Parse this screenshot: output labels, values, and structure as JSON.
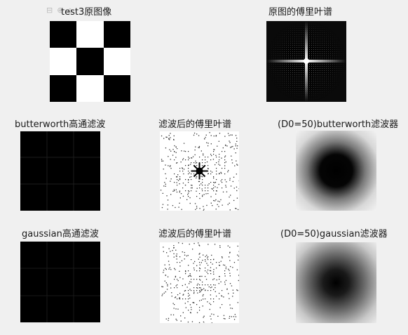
{
  "figure": {
    "axes_toolbar": [
      "⊟",
      "⊕",
      "⌂"
    ],
    "titles": {
      "original_image": "test3原图像",
      "original_spectrum": "原图的傅里叶谱",
      "butterworth_result": "butterworth高通滤波",
      "butterworth_spectrum": "滤波后的傅里叶谱",
      "butterworth_filter": "(D0=50)butterworth滤波器",
      "gaussian_result": "gaussian高通滤波",
      "gaussian_spectrum": "滤波后的傅里叶谱",
      "gaussian_filter": "(D0=50)gaussian滤波器"
    },
    "checkerboard": {
      "pattern": [
        [
          0,
          1,
          0
        ],
        [
          1,
          0,
          1
        ],
        [
          0,
          1,
          0
        ]
      ],
      "dark": "#000000",
      "light": "#ffffff"
    },
    "colors": {
      "background": "#f0f0f0",
      "text": "#1a1a1a"
    }
  }
}
